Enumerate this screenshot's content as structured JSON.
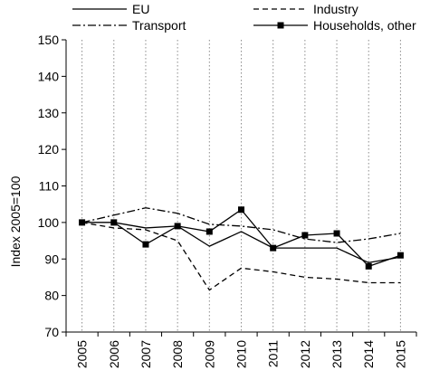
{
  "chart_data": {
    "type": "line",
    "title": "",
    "xlabel": "",
    "ylabel": "Index 2005=100",
    "ylim": [
      70,
      150
    ],
    "yticks": [
      70,
      80,
      90,
      100,
      110,
      120,
      130,
      140,
      150
    ],
    "x": [
      "2005",
      "2006",
      "2007",
      "2008",
      "2009",
      "2010",
      "2011",
      "2012",
      "2013",
      "2014",
      "2015"
    ],
    "grid": "vertical dotted",
    "legend_placement": "top",
    "series": [
      {
        "name": "EU",
        "style": "solid",
        "marker": "none",
        "color": "#000000",
        "values": [
          100,
          100,
          98.5,
          99,
          93.5,
          97.5,
          93,
          93,
          93,
          89,
          90.5
        ]
      },
      {
        "name": "Industry",
        "style": "dashed",
        "marker": "none",
        "color": "#000000",
        "values": [
          100,
          98.5,
          98,
          95,
          81.5,
          87.5,
          86.5,
          85,
          84.5,
          83.5,
          83.5
        ]
      },
      {
        "name": "Transport",
        "style": "dashdot",
        "marker": "none",
        "color": "#000000",
        "values": [
          100,
          102,
          104,
          102.5,
          99.5,
          99,
          98,
          95.5,
          94.5,
          95.5,
          97
        ]
      },
      {
        "name": "Households, other",
        "style": "solid",
        "marker": "square",
        "color": "#000000",
        "values": [
          100,
          100,
          94,
          99,
          97.5,
          103.5,
          93,
          96.5,
          97,
          88,
          91
        ]
      }
    ]
  }
}
